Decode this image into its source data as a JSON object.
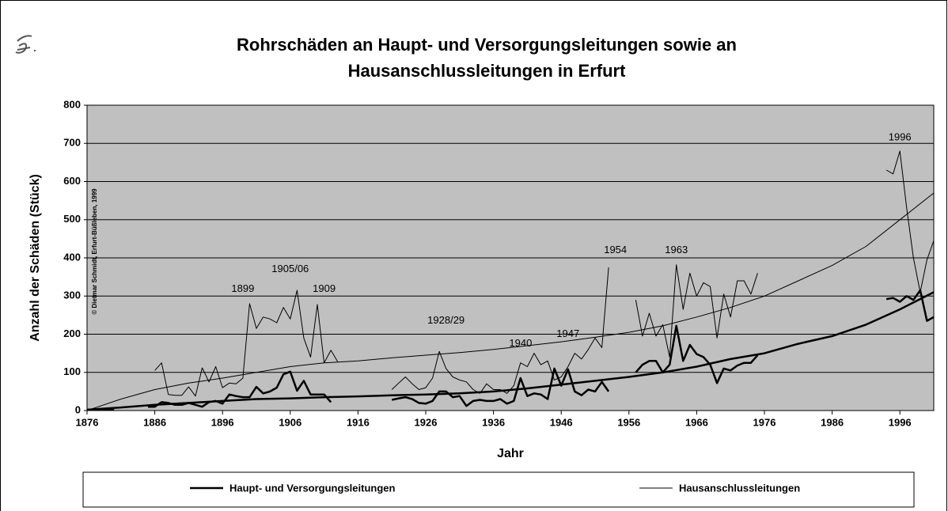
{
  "chart_data": {
    "type": "line",
    "title": [
      "Rohrschäden an Haupt- und Versorgungsleitungen sowie an",
      "Hausanschlussleitungen in Erfurt"
    ],
    "xlabel": "Jahr",
    "ylabel": "Anzahl der Schäden (Stück)",
    "copyright": "© Dietmar Schmidt, Erfurt-Büßleben, 1999",
    "x": [
      1876,
      1877,
      1878,
      1879,
      1880,
      1881,
      1882,
      1883,
      1884,
      1885,
      1886,
      1887,
      1888,
      1889,
      1890,
      1891,
      1892,
      1893,
      1894,
      1895,
      1896,
      1897,
      1898,
      1899,
      1900,
      1901,
      1902,
      1903,
      1904,
      1905,
      1906,
      1907,
      1908,
      1909,
      1910,
      1911,
      1912,
      1913,
      1914,
      1915,
      1916,
      1917,
      1918,
      1919,
      1920,
      1921,
      1922,
      1923,
      1924,
      1925,
      1926,
      1927,
      1928,
      1929,
      1930,
      1931,
      1932,
      1933,
      1934,
      1935,
      1936,
      1937,
      1938,
      1939,
      1940,
      1941,
      1942,
      1943,
      1944,
      1945,
      1946,
      1947,
      1948,
      1949,
      1950,
      1951,
      1952,
      1953,
      1954,
      1955,
      1956,
      1957,
      1958,
      1959,
      1960,
      1961,
      1962,
      1963,
      1964,
      1965,
      1966,
      1967,
      1968,
      1969,
      1970,
      1971,
      1972,
      1973,
      1974,
      1975,
      1976,
      1977,
      1978,
      1979,
      1980,
      1981,
      1982,
      1983,
      1984,
      1985,
      1986,
      1987,
      1988,
      1989,
      1990,
      1991,
      1992,
      1993,
      1994,
      1995,
      1996,
      1997,
      1998,
      1999,
      2000,
      2001
    ],
    "trend_x": [
      1876,
      1881,
      1886,
      1891,
      1896,
      1901,
      1906,
      1911,
      1916,
      1921,
      1926,
      1931,
      1936,
      1941,
      1946,
      1951,
      1956,
      1961,
      1966,
      1971,
      1976,
      1981,
      1986,
      1991,
      1996,
      2001
    ],
    "series": [
      {
        "name": "Haupt- und Versorgungsleitungen",
        "color": "#000000",
        "line_width": 2.5,
        "values": [
          2,
          3,
          4,
          3,
          2,
          null,
          null,
          null,
          null,
          10,
          10,
          22,
          20,
          15,
          15,
          20,
          15,
          10,
          22,
          25,
          18,
          42,
          38,
          35,
          35,
          62,
          45,
          50,
          60,
          95,
          102,
          52,
          78,
          42,
          42,
          42,
          22,
          null,
          null,
          null,
          null,
          null,
          null,
          null,
          null,
          28,
          32,
          35,
          30,
          20,
          18,
          25,
          50,
          50,
          35,
          38,
          12,
          25,
          28,
          25,
          25,
          30,
          18,
          25,
          85,
          38,
          45,
          42,
          30,
          110,
          65,
          108,
          50,
          40,
          55,
          50,
          75,
          50,
          null,
          null,
          null,
          100,
          120,
          130,
          130,
          100,
          120,
          222,
          130,
          172,
          148,
          140,
          120,
          72,
          110,
          105,
          118,
          125,
          125,
          145,
          null,
          null,
          null,
          null,
          null,
          null,
          null,
          null,
          null,
          null,
          null,
          null,
          null,
          null,
          null,
          null,
          null,
          null,
          292,
          295,
          285,
          300,
          290,
          315,
          235,
          245
        ],
        "trend": [
          2,
          8,
          15,
          20,
          25,
          30,
          32,
          35,
          37,
          40,
          42,
          45,
          50,
          58,
          68,
          78,
          88,
          100,
          115,
          135,
          150,
          175,
          195,
          225,
          265,
          310
        ]
      },
      {
        "name": "Hausanschlussleitungen",
        "color": "#000000",
        "line_width": 1,
        "values": [
          null,
          null,
          null,
          null,
          null,
          null,
          null,
          null,
          null,
          null,
          105,
          125,
          42,
          40,
          40,
          62,
          38,
          112,
          75,
          115,
          60,
          72,
          70,
          85,
          280,
          215,
          245,
          240,
          230,
          270,
          240,
          315,
          190,
          140,
          278,
          125,
          158,
          128,
          null,
          null,
          null,
          null,
          null,
          null,
          null,
          55,
          72,
          88,
          70,
          55,
          60,
          85,
          155,
          110,
          88,
          80,
          75,
          55,
          45,
          70,
          55,
          55,
          45,
          65,
          125,
          115,
          150,
          120,
          130,
          80,
          88,
          115,
          150,
          135,
          160,
          190,
          165,
          375,
          null,
          null,
          null,
          290,
          195,
          255,
          195,
          225,
          140,
          382,
          265,
          360,
          300,
          335,
          325,
          190,
          305,
          245,
          340,
          340,
          305,
          360,
          null,
          null,
          null,
          null,
          null,
          null,
          null,
          null,
          null,
          null,
          null,
          null,
          null,
          null,
          null,
          null,
          null,
          null,
          630,
          620,
          680,
          530,
          400,
          310,
          395,
          445
        ],
        "trend": [
          0,
          30,
          55,
          72,
          85,
          100,
          115,
          125,
          130,
          138,
          145,
          152,
          160,
          170,
          180,
          192,
          205,
          222,
          245,
          270,
          300,
          340,
          380,
          430,
          500,
          570
        ]
      }
    ],
    "annotations": [
      {
        "text": "1899",
        "x": 1899,
        "y": 318
      },
      {
        "text": "1905/06",
        "x": 1906,
        "y": 370
      },
      {
        "text": "1909",
        "x": 1911,
        "y": 318
      },
      {
        "text": "1928/29",
        "x": 1929,
        "y": 235
      },
      {
        "text": "1940",
        "x": 1940,
        "y": 175
      },
      {
        "text": "1947",
        "x": 1947,
        "y": 200
      },
      {
        "text": "1954",
        "x": 1954,
        "y": 420
      },
      {
        "text": "1963",
        "x": 1963,
        "y": 420
      },
      {
        "text": "1996",
        "x": 1996,
        "y": 715
      }
    ],
    "xlim": [
      1876,
      2001
    ],
    "xticks": [
      1876,
      1886,
      1896,
      1906,
      1916,
      1926,
      1936,
      1946,
      1956,
      1966,
      1976,
      1986,
      1996
    ],
    "ylim": [
      0,
      800
    ],
    "yticks": [
      0,
      100,
      200,
      300,
      400,
      500,
      600,
      700,
      800
    ],
    "grid": true,
    "legend": "bottom",
    "plot_background": "#c0c0c0"
  }
}
